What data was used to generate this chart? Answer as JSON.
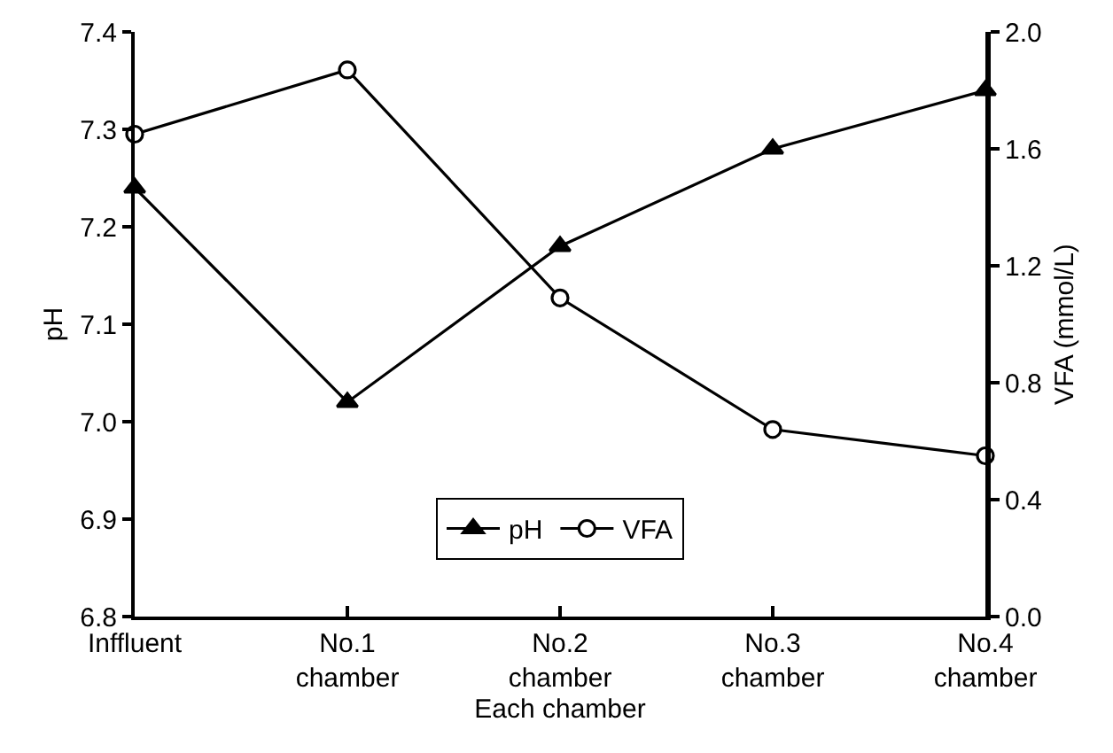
{
  "chart_data": {
    "type": "line",
    "xlabel": "Each chamber",
    "ylabel": "pH",
    "y2label": "VFA (mmol/L)",
    "categories": [
      "Inffluent",
      "No.1 chamber",
      "No.2 chamber",
      "No.3 chamber",
      "No.4 chamber"
    ],
    "series": [
      {
        "name": "pH",
        "color": "#000000",
        "marker": "triangle",
        "values": [
          7.24,
          7.02,
          7.18,
          7.28,
          7.34
        ]
      },
      {
        "name": "VFA",
        "color": "#000000",
        "marker": "circle",
        "axis": "y2",
        "values": [
          1.65,
          1.87,
          1.09,
          0.64,
          0.55
        ]
      }
    ],
    "ylim": [
      6.8,
      7.4
    ],
    "yticks": [
      {
        "value": 6.8,
        "label": "6.8"
      },
      {
        "value": 6.9,
        "label": "6.9"
      },
      {
        "value": 7.0,
        "label": "7.0"
      },
      {
        "value": 7.1,
        "label": "7.1"
      },
      {
        "value": 7.2,
        "label": "7.2"
      },
      {
        "value": 7.3,
        "label": "7.3"
      },
      {
        "value": 7.4,
        "label": "7.4"
      }
    ],
    "y2lim": [
      0,
      2
    ],
    "y2ticks": [
      {
        "value": 0,
        "label": "0.0"
      },
      {
        "value": 0.4,
        "label": "0.4"
      },
      {
        "value": 0.8,
        "label": "0.8"
      },
      {
        "value": 1.2,
        "label": "1.2"
      },
      {
        "value": 1.6,
        "label": "1.6"
      },
      {
        "value": 2,
        "label": "2.0"
      }
    ],
    "grid": false,
    "legend": "bottom",
    "line_style": "solid"
  }
}
